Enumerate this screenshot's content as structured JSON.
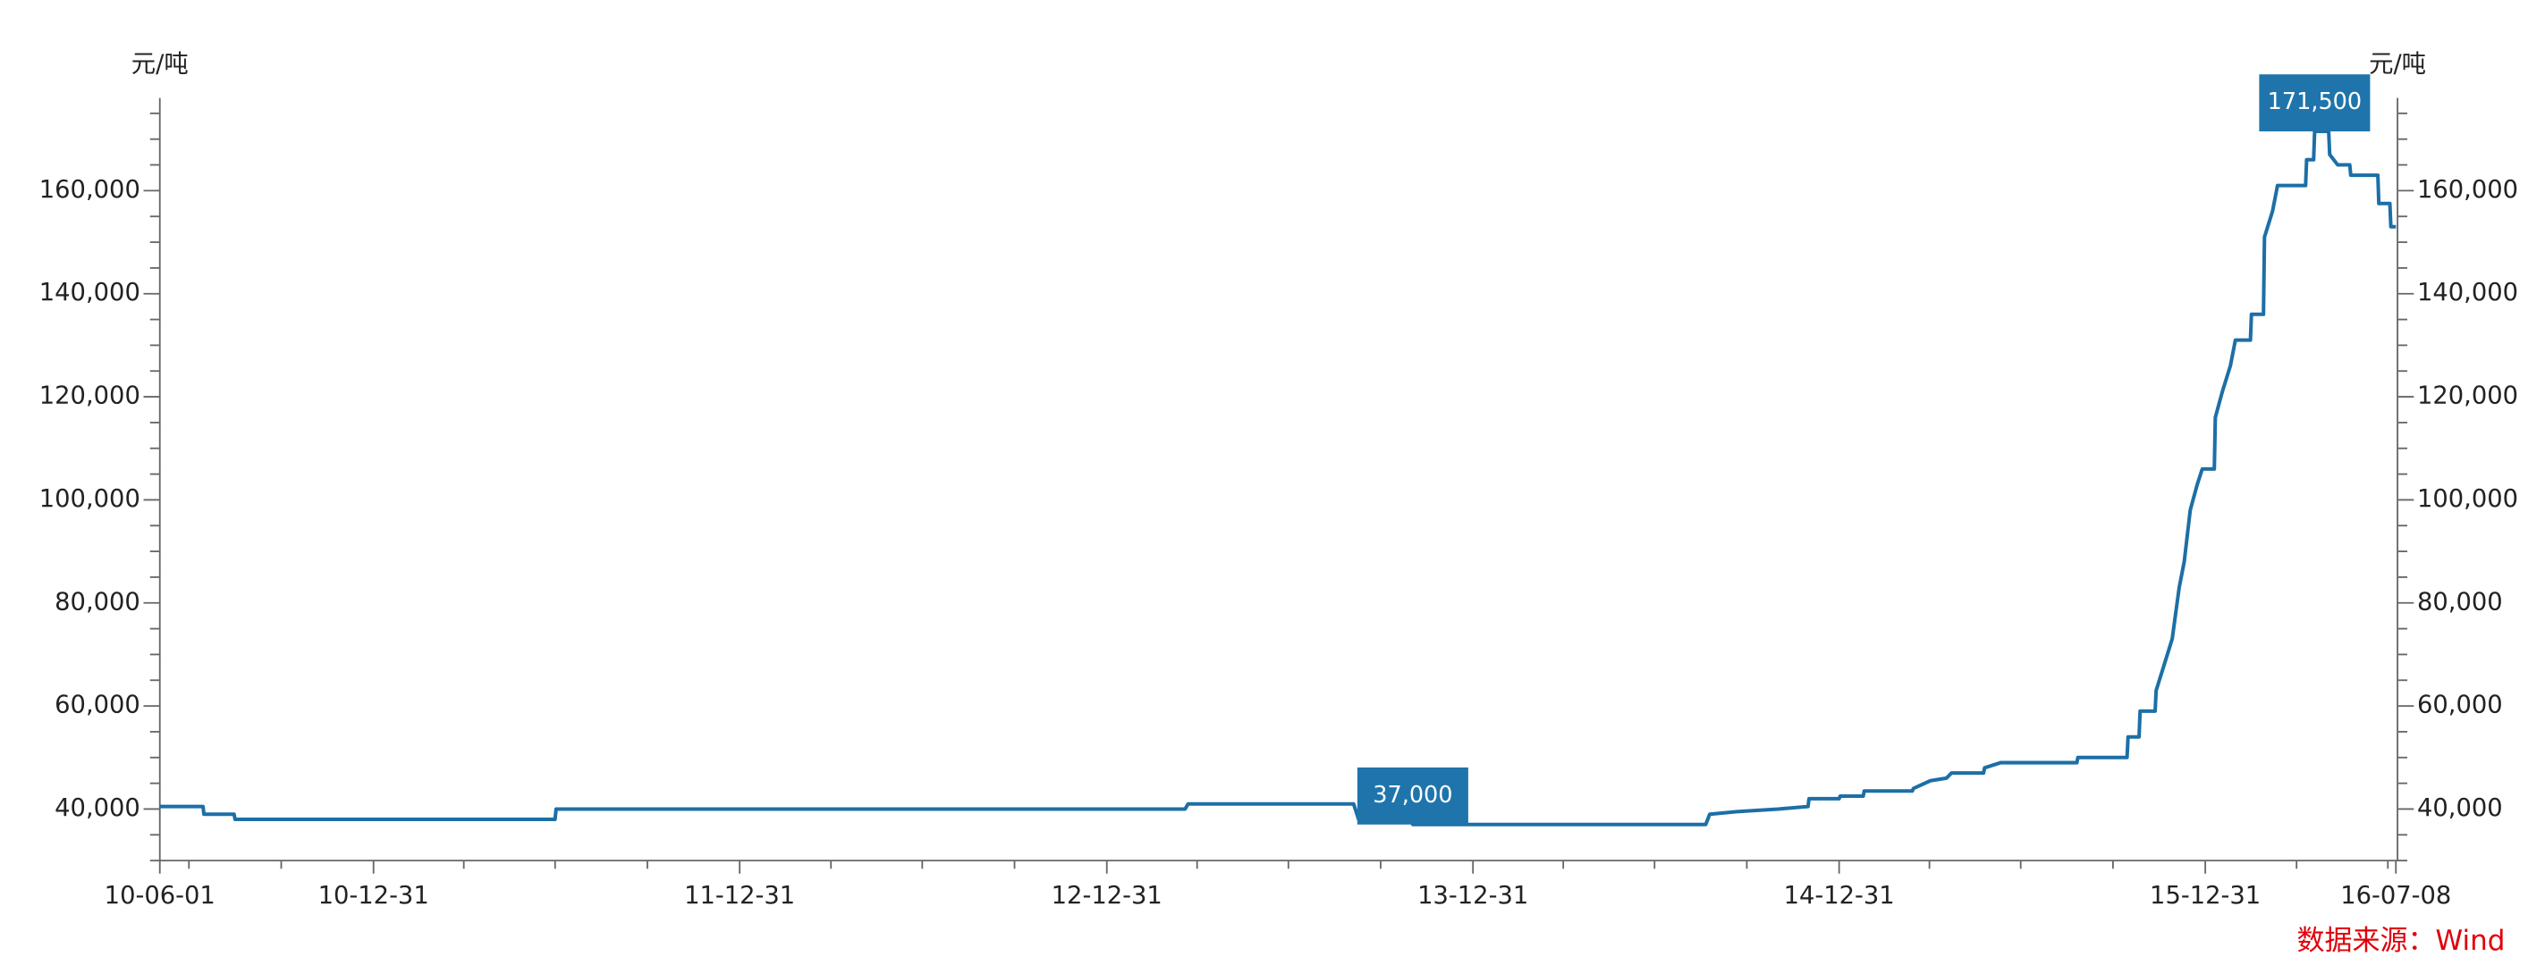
{
  "chart_data": {
    "type": "line",
    "y_unit_left": "元/吨",
    "y_unit_right": "元/吨",
    "source": "数据来源：Wind",
    "xlim": [
      "10-06-01",
      "16-07-08"
    ],
    "xticks": [
      "10-06-01",
      "10-12-31",
      "11-12-31",
      "12-12-31",
      "13-12-31",
      "14-12-31",
      "15-12-31",
      "16-07-08"
    ],
    "xminorticks": [
      "10-06-30",
      "10-09-30",
      "11-03-31",
      "11-06-30",
      "11-09-30",
      "12-03-31",
      "12-06-30",
      "12-09-30",
      "13-03-31",
      "13-06-30",
      "13-09-30",
      "14-03-31",
      "14-06-30",
      "14-09-30",
      "15-03-31",
      "15-06-30",
      "15-09-30",
      "16-03-31",
      "16-06-30"
    ],
    "ylim": [
      30000,
      178000
    ],
    "yticks": [
      {
        "value": 40000,
        "label": "40,000"
      },
      {
        "value": 60000,
        "label": "60,000"
      },
      {
        "value": 80000,
        "label": "80,000"
      },
      {
        "value": 100000,
        "label": "100,000"
      },
      {
        "value": 120000,
        "label": "120,000"
      },
      {
        "value": 140000,
        "label": "140,000"
      },
      {
        "value": 160000,
        "label": "160,000"
      }
    ],
    "yminorticks": [
      30000,
      35000,
      45000,
      50000,
      55000,
      65000,
      70000,
      75000,
      85000,
      90000,
      95000,
      105000,
      110000,
      115000,
      125000,
      130000,
      135000,
      145000,
      150000,
      155000,
      165000,
      170000,
      175000
    ],
    "x": [
      "10-06-01",
      "10-07-14",
      "10-07-15",
      "10-08-14",
      "10-08-15",
      "11-06-30",
      "11-07-01",
      "13-03-19",
      "13-03-22",
      "13-09-03",
      "13-09-08",
      "13-10-30",
      "13-11-01",
      "14-08-20",
      "14-08-24",
      "14-09-20",
      "14-10-31",
      "14-11-30",
      "14-12-01",
      "14-12-31",
      "15-01-01",
      "15-01-24",
      "15-01-25",
      "15-03-14",
      "15-03-15",
      "15-04-01",
      "15-04-17",
      "15-04-22",
      "15-05-24",
      "15-05-25",
      "15-06-10",
      "15-08-25",
      "15-08-26",
      "15-10-14",
      "15-10-15",
      "15-10-26",
      "15-10-27",
      "15-11-11",
      "15-11-12",
      "15-11-20",
      "15-11-28",
      "15-12-05",
      "15-12-10",
      "15-12-16",
      "15-12-23",
      "15-12-28",
      "16-01-09",
      "16-01-10",
      "16-01-17",
      "16-01-25",
      "16-01-30",
      "16-02-14",
      "16-02-15",
      "16-02-27",
      "16-02-28",
      "16-03-07",
      "16-03-12",
      "16-04-09",
      "16-04-10",
      "16-04-17",
      "16-04-18",
      "16-05-02",
      "16-05-03",
      "16-05-11",
      "16-05-23",
      "16-05-24",
      "16-06-20",
      "16-06-21",
      "16-07-02",
      "16-07-03",
      "16-07-08"
    ],
    "series": [
      {
        "color": "#1c6fa6",
        "values": [
          40500,
          40500,
          39000,
          39000,
          38000,
          38000,
          40000,
          40000,
          41000,
          41000,
          38000,
          38000,
          37000,
          37000,
          39000,
          39500,
          40000,
          40500,
          42000,
          42000,
          42500,
          42500,
          43500,
          43500,
          44000,
          45500,
          46000,
          47000,
          47000,
          48000,
          49000,
          49000,
          50000,
          50000,
          54000,
          54000,
          59000,
          59000,
          63000,
          68000,
          73000,
          83000,
          88000,
          98000,
          103000,
          106000,
          106000,
          116000,
          121000,
          126000,
          131000,
          131000,
          136000,
          136000,
          151000,
          156000,
          161000,
          161000,
          166000,
          166000,
          171500,
          171500,
          167000,
          165000,
          165000,
          163000,
          163000,
          157500,
          157500,
          153000,
          153000
        ]
      }
    ],
    "annotations": [
      {
        "x": "13-11-01",
        "value": 37000,
        "label": "37,000",
        "color": "#1f75ab"
      },
      {
        "x": "16-04-18",
        "value": 171500,
        "label": "171,500",
        "color": "#1f75ab"
      }
    ]
  }
}
